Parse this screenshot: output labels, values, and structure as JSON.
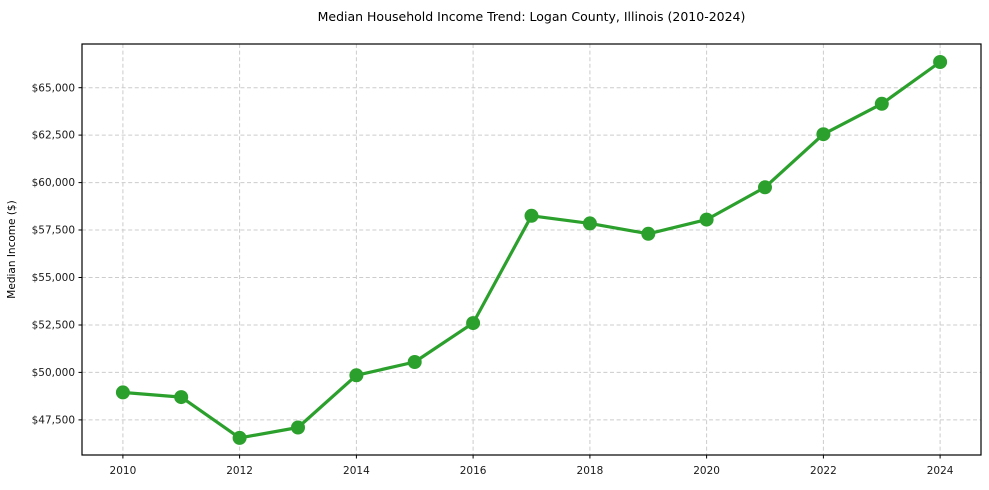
{
  "chart_data": {
    "type": "line",
    "title": "Median Household Income Trend: Logan County, Illinois (2010-2024)",
    "xlabel": "",
    "ylabel": "Median Income ($)",
    "x": [
      2010,
      2011,
      2012,
      2013,
      2014,
      2015,
      2016,
      2017,
      2018,
      2019,
      2020,
      2021,
      2022,
      2023,
      2024
    ],
    "series": [
      {
        "values": [
          48950,
          48700,
          46550,
          47100,
          49850,
          50550,
          52600,
          58250,
          57850,
          57300,
          58050,
          59750,
          62550,
          64150,
          66350
        ]
      }
    ],
    "xticks": [
      2010,
      2012,
      2014,
      2016,
      2018,
      2020,
      2022,
      2024
    ],
    "yticks": [
      47500,
      50000,
      52500,
      55000,
      57500,
      60000,
      62500,
      65000
    ],
    "ytick_prefix": "$",
    "xlim": [
      2009.3,
      2024.7
    ],
    "ylim": [
      45650,
      67300
    ],
    "grid": true,
    "grid_style": "dashed",
    "legend_position": "none",
    "line_color": "#2ca02c",
    "grid_color": "#cccccc",
    "marker": "circle"
  }
}
